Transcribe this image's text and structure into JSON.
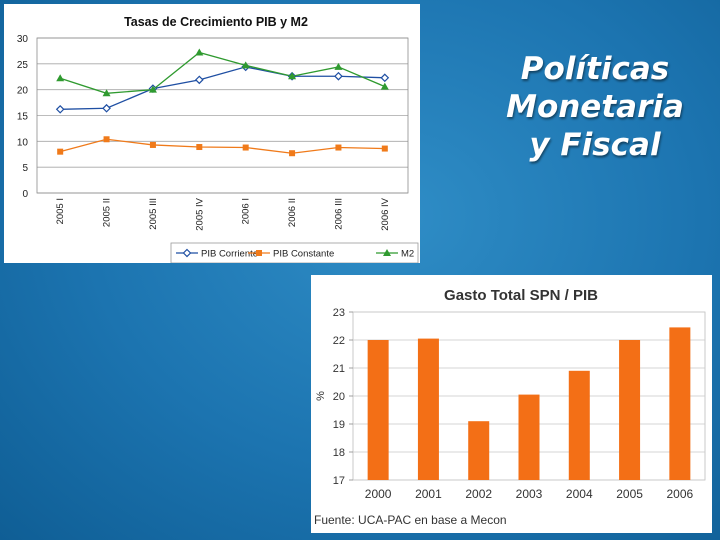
{
  "slide": {
    "title_lines": [
      "Políticas",
      "Monetaria",
      "y Fiscal"
    ]
  },
  "chart_data": [
    {
      "type": "line",
      "title": "Tasas de Crecimiento PIB y M2",
      "categories": [
        "2005 I",
        "2005 II",
        "2005 III",
        "2005 IV",
        "2006 I",
        "2006 II",
        "2006 III",
        "2006 IV"
      ],
      "ylim": [
        0,
        30
      ],
      "yticks": [
        0,
        5,
        10,
        15,
        20,
        25,
        30
      ],
      "grid": true,
      "legend_position": "bottom",
      "series": [
        {
          "name": "PIB Corriente",
          "color": "#1f4fa3",
          "marker": "diamond",
          "values": [
            16.2,
            16.4,
            20.2,
            21.9,
            24.4,
            22.6,
            22.6,
            22.3
          ]
        },
        {
          "name": "PIB Constante",
          "color": "#f07a1a",
          "marker": "square",
          "values": [
            8.0,
            10.4,
            9.3,
            8.9,
            8.8,
            7.7,
            8.8,
            8.6
          ]
        },
        {
          "name": "M2",
          "color": "#2f9a2f",
          "marker": "triangle",
          "values": [
            22.2,
            19.3,
            20.0,
            27.2,
            24.7,
            22.6,
            24.4,
            20.6
          ]
        }
      ]
    },
    {
      "type": "bar",
      "title": "Gasto Total SPN / PIB",
      "ylabel": "%",
      "categories": [
        "2000",
        "2001",
        "2002",
        "2003",
        "2004",
        "2005",
        "2006"
      ],
      "values": [
        22.0,
        22.05,
        19.1,
        20.05,
        20.9,
        22.0,
        22.45
      ],
      "ylim": [
        17,
        23
      ],
      "yticks": [
        17,
        18,
        19,
        20,
        21,
        22,
        23
      ],
      "grid": true,
      "bar_color": "#f36f16",
      "source": "Fuente: UCA-PAC en base a Mecon"
    }
  ]
}
